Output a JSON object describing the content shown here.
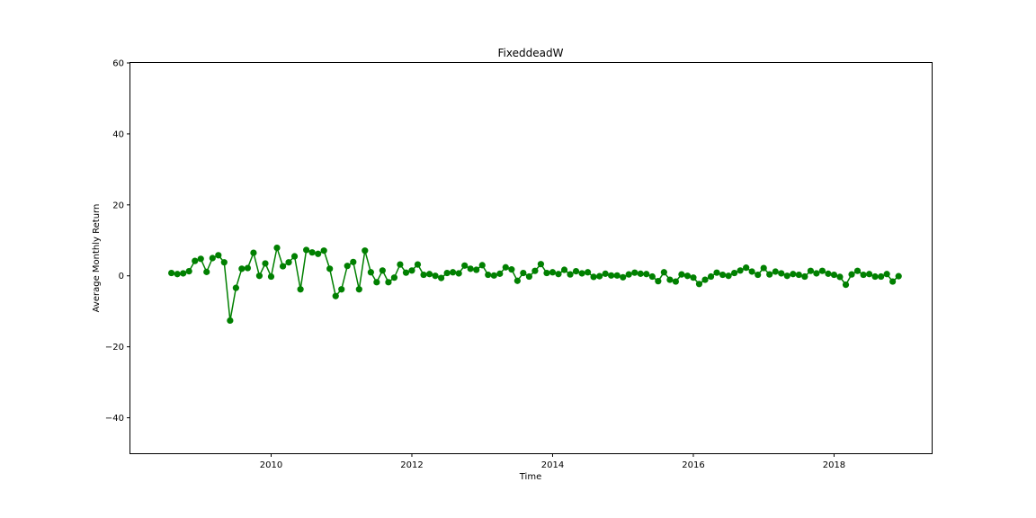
{
  "chart_data": {
    "type": "line",
    "title": "FixeddeadW",
    "xlabel": "Time",
    "ylabel": "Average Monthly Return",
    "xlim": [
      2008.0,
      2019.4
    ],
    "ylim": [
      -50,
      60
    ],
    "x_ticks": [
      2010,
      2012,
      2014,
      2016,
      2018
    ],
    "y_ticks": [
      -40,
      -20,
      0,
      20,
      40,
      60
    ],
    "grid": false,
    "legend": "none",
    "series": [
      {
        "color": "#008000",
        "marker": "circle",
        "x": [
          2008.583,
          2008.667,
          2008.75,
          2008.833,
          2008.917,
          2009.0,
          2009.083,
          2009.167,
          2009.25,
          2009.333,
          2009.417,
          2009.5,
          2009.583,
          2009.667,
          2009.75,
          2009.833,
          2009.917,
          2010.0,
          2010.083,
          2010.167,
          2010.25,
          2010.333,
          2010.417,
          2010.5,
          2010.583,
          2010.667,
          2010.75,
          2010.833,
          2010.917,
          2011.0,
          2011.083,
          2011.167,
          2011.25,
          2011.333,
          2011.417,
          2011.5,
          2011.583,
          2011.667,
          2011.75,
          2011.833,
          2011.917,
          2012.0,
          2012.083,
          2012.167,
          2012.25,
          2012.333,
          2012.417,
          2012.5,
          2012.583,
          2012.667,
          2012.75,
          2012.833,
          2012.917,
          2013.0,
          2013.083,
          2013.167,
          2013.25,
          2013.333,
          2013.417,
          2013.5,
          2013.583,
          2013.667,
          2013.75,
          2013.833,
          2013.917,
          2014.0,
          2014.083,
          2014.167,
          2014.25,
          2014.333,
          2014.417,
          2014.5,
          2014.583,
          2014.667,
          2014.75,
          2014.833,
          2014.917,
          2015.0,
          2015.083,
          2015.167,
          2015.25,
          2015.333,
          2015.417,
          2015.5,
          2015.583,
          2015.667,
          2015.75,
          2015.833,
          2015.917,
          2016.0,
          2016.083,
          2016.167,
          2016.25,
          2016.333,
          2016.417,
          2016.5,
          2016.583,
          2016.667,
          2016.75,
          2016.833,
          2016.917,
          2017.0,
          2017.083,
          2017.167,
          2017.25,
          2017.333,
          2017.417,
          2017.5,
          2017.583,
          2017.667,
          2017.75,
          2017.833,
          2017.917,
          2018.0,
          2018.083,
          2018.167,
          2018.25,
          2018.333,
          2018.417,
          2018.5,
          2018.583,
          2018.667,
          2018.75,
          2018.833,
          2018.917
        ],
        "y": [
          0.8,
          0.5,
          0.7,
          1.3,
          4.2,
          4.8,
          1.1,
          5.0,
          5.8,
          3.8,
          -12.6,
          -3.4,
          2.0,
          2.2,
          6.5,
          0.0,
          3.5,
          -0.2,
          7.9,
          2.7,
          3.8,
          5.5,
          -3.8,
          7.3,
          6.6,
          6.2,
          7.1,
          2.0,
          -5.7,
          -3.8,
          2.8,
          3.9,
          -3.8,
          7.1,
          1.0,
          -1.8,
          1.5,
          -1.8,
          -0.5,
          3.2,
          0.9,
          1.5,
          3.2,
          0.3,
          0.5,
          0.0,
          -0.6,
          0.8,
          1.0,
          0.7,
          2.9,
          2.0,
          1.7,
          3.0,
          0.3,
          0.1,
          0.6,
          2.4,
          1.8,
          -1.4,
          0.8,
          -0.2,
          1.4,
          3.3,
          0.8,
          1.0,
          0.5,
          1.7,
          0.4,
          1.3,
          0.7,
          1.0,
          -0.3,
          -0.1,
          0.6,
          0.1,
          0.1,
          -0.4,
          0.4,
          0.9,
          0.6,
          0.5,
          -0.2,
          -1.5,
          1.0,
          -1.1,
          -1.6,
          0.4,
          0.0,
          -0.5,
          -2.3,
          -1.1,
          -0.2,
          0.9,
          0.3,
          0.0,
          0.8,
          1.5,
          2.3,
          1.2,
          0.3,
          2.2,
          0.4,
          1.2,
          0.7,
          0.0,
          0.5,
          0.3,
          -0.2,
          1.4,
          0.7,
          1.4,
          0.6,
          0.3,
          -0.3,
          -2.5,
          0.4,
          1.4,
          0.3,
          0.5,
          -0.2,
          -0.2,
          0.5,
          -1.6,
          -0.1
        ]
      }
    ]
  }
}
